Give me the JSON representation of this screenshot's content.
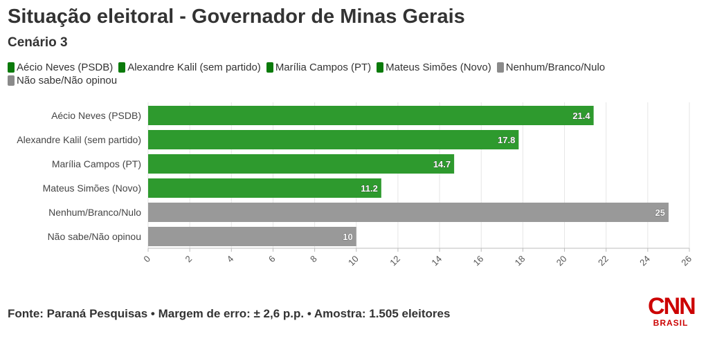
{
  "title": "Situação eleitoral - Governador de Minas Gerais",
  "subtitle": "Cenário 3",
  "footer": "Fonte: Paraná Pesquisas • Margem de erro: ± 2,6 p.p. • Amostra: 1.505 eleitores",
  "logo": {
    "name": "CNN",
    "sub": "BRASIL",
    "color": "#cc0000"
  },
  "colors": {
    "green": "#2e9a2e",
    "grey": "#999999",
    "legend_green": "#0a7a0a",
    "legend_grey": "#8a8a8a"
  },
  "legend": [
    {
      "label": "Aécio Neves (PSDB)",
      "color": "#0a7a0a"
    },
    {
      "label": "Alexandre Kalil (sem partido)",
      "color": "#0a7a0a"
    },
    {
      "label": "Marília Campos (PT)",
      "color": "#0a7a0a"
    },
    {
      "label": "Mateus Simões (Novo)",
      "color": "#0a7a0a"
    },
    {
      "label": "Nenhum/Branco/Nulo",
      "color": "#8a8a8a"
    },
    {
      "label": "Não sabe/Não opinou",
      "color": "#8a8a8a"
    }
  ],
  "chart_data": {
    "type": "bar",
    "orientation": "horizontal",
    "title": "",
    "xlabel": "",
    "ylabel": "",
    "categories": [
      "Aécio Neves (PSDB)",
      "Alexandre Kalil (sem partido)",
      "Marília Campos (PT)",
      "Mateus Simões (Novo)",
      "Nenhum/Branco/Nulo",
      "Não sabe/Não opinou"
    ],
    "values": [
      21.4,
      17.8,
      14.7,
      11.2,
      25,
      10
    ],
    "value_labels": [
      "21.4",
      "17.8",
      "14.7",
      "11.2",
      "25",
      "10"
    ],
    "bar_colors": [
      "#2e9a2e",
      "#2e9a2e",
      "#2e9a2e",
      "#2e9a2e",
      "#999999",
      "#999999"
    ],
    "xlim": [
      0,
      26
    ],
    "xticks": [
      0,
      2,
      4,
      6,
      8,
      10,
      12,
      14,
      16,
      18,
      20,
      22,
      24,
      26
    ],
    "xtick_labels": [
      "0",
      "2",
      "4",
      "6",
      "8",
      "10",
      "12",
      "14",
      "16",
      "18",
      "20",
      "22",
      "24",
      "26"
    ],
    "grid": true,
    "legend_position": "top"
  }
}
